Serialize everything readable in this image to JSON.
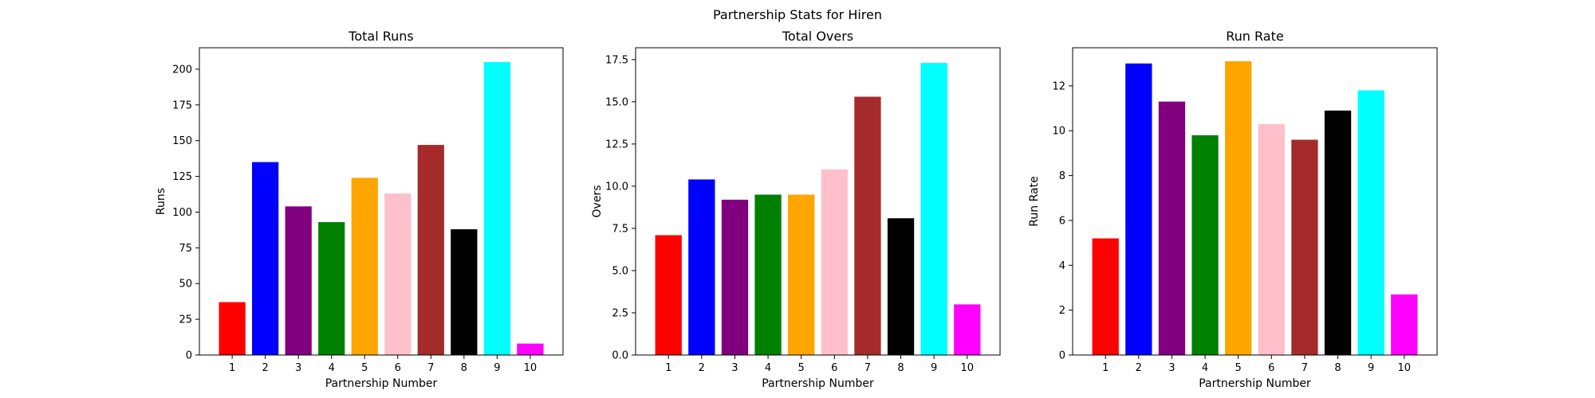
{
  "figure": {
    "suptitle": "Partnership Stats for Hiren"
  },
  "bar_colors": [
    "#ff0000",
    "#0000ff",
    "#800080",
    "#008000",
    "#ffa500",
    "#ffc0cb",
    "#a52a2a",
    "#000000",
    "#00ffff",
    "#ff00ff"
  ],
  "chart_data": [
    {
      "type": "bar",
      "title": "Total Runs",
      "xlabel": "Partnership Number",
      "ylabel": "Runs",
      "categories": [
        "1",
        "2",
        "3",
        "4",
        "5",
        "6",
        "7",
        "8",
        "9",
        "10"
      ],
      "values": [
        37,
        135,
        104,
        93,
        124,
        113,
        147,
        88,
        205,
        8
      ],
      "ylim": [
        0,
        215
      ],
      "yticks": [
        0,
        25,
        50,
        75,
        100,
        125,
        150,
        175,
        200
      ],
      "ytick_labels": [
        "0",
        "25",
        "50",
        "75",
        "100",
        "125",
        "150",
        "175",
        "200"
      ],
      "grid": false
    },
    {
      "type": "bar",
      "title": "Total Overs",
      "xlabel": "Partnership Number",
      "ylabel": "Overs",
      "categories": [
        "1",
        "2",
        "3",
        "4",
        "5",
        "6",
        "7",
        "8",
        "9",
        "10"
      ],
      "values": [
        7.1,
        10.4,
        9.2,
        9.5,
        9.5,
        11.0,
        15.3,
        8.1,
        17.3,
        3.0
      ],
      "ylim": [
        0,
        18.2
      ],
      "yticks": [
        0,
        2.5,
        5,
        7.5,
        10,
        12.5,
        15,
        17.5
      ],
      "ytick_labels": [
        "0.0",
        "2.5",
        "5.0",
        "7.5",
        "10.0",
        "12.5",
        "15.0",
        "17.5"
      ],
      "grid": false
    },
    {
      "type": "bar",
      "title": "Run Rate",
      "xlabel": "Partnership Number",
      "ylabel": "Run Rate",
      "categories": [
        "1",
        "2",
        "3",
        "4",
        "5",
        "6",
        "7",
        "8",
        "9",
        "10"
      ],
      "values": [
        5.2,
        13.0,
        11.3,
        9.8,
        13.1,
        10.3,
        9.6,
        10.9,
        11.8,
        2.7
      ],
      "ylim": [
        0,
        13.7
      ],
      "yticks": [
        0,
        2,
        4,
        6,
        8,
        10,
        12
      ],
      "ytick_labels": [
        "0",
        "2",
        "4",
        "6",
        "8",
        "10",
        "12"
      ],
      "grid": false
    }
  ]
}
